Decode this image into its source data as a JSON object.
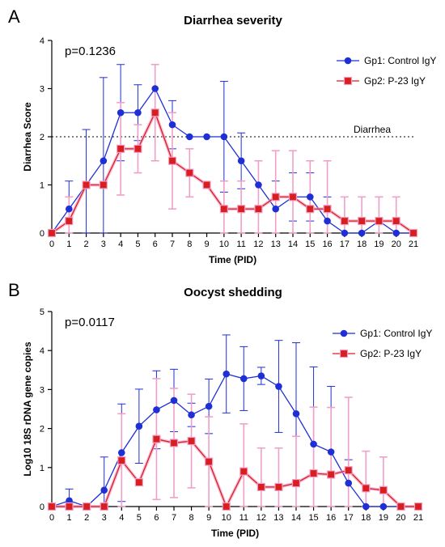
{
  "colors": {
    "gp1": "#1f2fd6",
    "gp2": "#d81e1e",
    "gp2_err": "#f0a0c8",
    "axis": "#000000",
    "ref": "#000000"
  },
  "chart_data": [
    {
      "type": "line",
      "panel_label": "A",
      "title": "Diarrhea severity",
      "annotation": "p=0.1236",
      "xlabel": "Time (PID)",
      "ylabel": "Diarrhea Score",
      "xlim": [
        0,
        21
      ],
      "ylim": [
        0,
        4
      ],
      "x_ticks": [
        "0",
        "1",
        "2",
        "3",
        "4",
        "5",
        "6",
        "7",
        "8",
        "9",
        "10",
        "11",
        "12",
        "13",
        "14",
        "15",
        "16",
        "17",
        "18",
        "19",
        "20",
        "21"
      ],
      "y_ticks": [
        "0",
        "1",
        "2",
        "3",
        "4"
      ],
      "reference_line": {
        "y": 2,
        "label": "Diarrhea",
        "style": "dotted"
      },
      "legend_position": "top-right",
      "x": [
        0,
        1,
        2,
        3,
        4,
        5,
        6,
        7,
        8,
        9,
        10,
        11,
        12,
        13,
        14,
        15,
        16,
        17,
        18,
        19,
        20,
        21
      ],
      "series": [
        {
          "name": "Gp1: Control IgY",
          "marker": "circle",
          "values": [
            0,
            0.5,
            1,
            1.5,
            2.5,
            2.5,
            3,
            2.25,
            2,
            2,
            2,
            1.5,
            1,
            0.5,
            0.75,
            0.75,
            0.25,
            0,
            0,
            0.25,
            0,
            0
          ],
          "err": [
            0,
            0.58,
            1.15,
            1.73,
            1.0,
            0.58,
            0,
            0.5,
            0,
            0,
            1.15,
            0.58,
            0,
            0.58,
            0.5,
            0.5,
            0.5,
            0,
            0,
            0.5,
            0,
            0
          ]
        },
        {
          "name": "Gp2: P-23 IgY",
          "marker": "square",
          "values": [
            0,
            0.25,
            1,
            1,
            1.75,
            1.75,
            2.5,
            1.5,
            1.25,
            1,
            0.5,
            0.5,
            0.5,
            0.75,
            0.75,
            0.5,
            0.5,
            0.25,
            0.25,
            0.25,
            0.25,
            0
          ],
          "err": [
            0,
            0.5,
            0,
            0,
            0.96,
            0.5,
            1.0,
            1.0,
            0.5,
            0,
            0.58,
            0.58,
            1.0,
            0.96,
            0.96,
            1.0,
            1.0,
            0.5,
            0.5,
            0.5,
            0.5,
            0
          ]
        }
      ]
    },
    {
      "type": "line",
      "panel_label": "B",
      "title": "Oocyst shedding",
      "annotation": "p=0.0117",
      "xlabel": "Time (PID)",
      "ylabel": "Log10  18S rDNA gene copies",
      "xlim": [
        0,
        21
      ],
      "ylim": [
        0,
        5
      ],
      "x_ticks": [
        "0",
        "1",
        "2",
        "3",
        "4",
        "5",
        "6",
        "7",
        "8",
        "9",
        "10",
        "11",
        "12",
        "13",
        "14",
        "15",
        "16",
        "17",
        "18",
        "19",
        "20",
        "21"
      ],
      "y_ticks": [
        "0",
        "1",
        "2",
        "3",
        "4",
        "5"
      ],
      "legend_position": "top-right",
      "x": [
        0,
        1,
        2,
        3,
        4,
        5,
        6,
        7,
        8,
        9,
        10,
        11,
        12,
        13,
        14,
        15,
        16,
        17,
        18,
        19,
        20,
        21
      ],
      "series": [
        {
          "name": "Gp1: Control IgY",
          "marker": "circle",
          "values": [
            0,
            0.15,
            0,
            0.42,
            1.38,
            2.06,
            2.48,
            2.72,
            2.35,
            2.57,
            3.4,
            3.28,
            3.35,
            3.08,
            2.38,
            1.6,
            1.4,
            0.6,
            0,
            0,
            0,
            0
          ],
          "err": [
            0,
            0.3,
            0,
            0.85,
            1.25,
            0.95,
            1.0,
            0.8,
            0.3,
            0.7,
            1.0,
            0.82,
            0.22,
            1.18,
            1.82,
            1.98,
            1.68,
            0.6,
            0,
            0,
            0,
            0
          ]
        },
        {
          "name": "Gp2: P-23 IgY",
          "marker": "square",
          "values": [
            0,
            0,
            0,
            0,
            1.18,
            0.62,
            1.73,
            1.63,
            1.68,
            1.15,
            0,
            0.9,
            0.5,
            0.5,
            0.6,
            0.85,
            0.82,
            0.93,
            0.47,
            0.42,
            0,
            0
          ],
          "err": [
            0,
            0,
            0,
            0,
            1.2,
            0,
            1.55,
            1.4,
            1.2,
            1.15,
            0,
            1.22,
            1.0,
            1.0,
            1.2,
            1.7,
            1.72,
            1.87,
            0.95,
            0.85,
            0,
            0
          ]
        }
      ]
    }
  ]
}
